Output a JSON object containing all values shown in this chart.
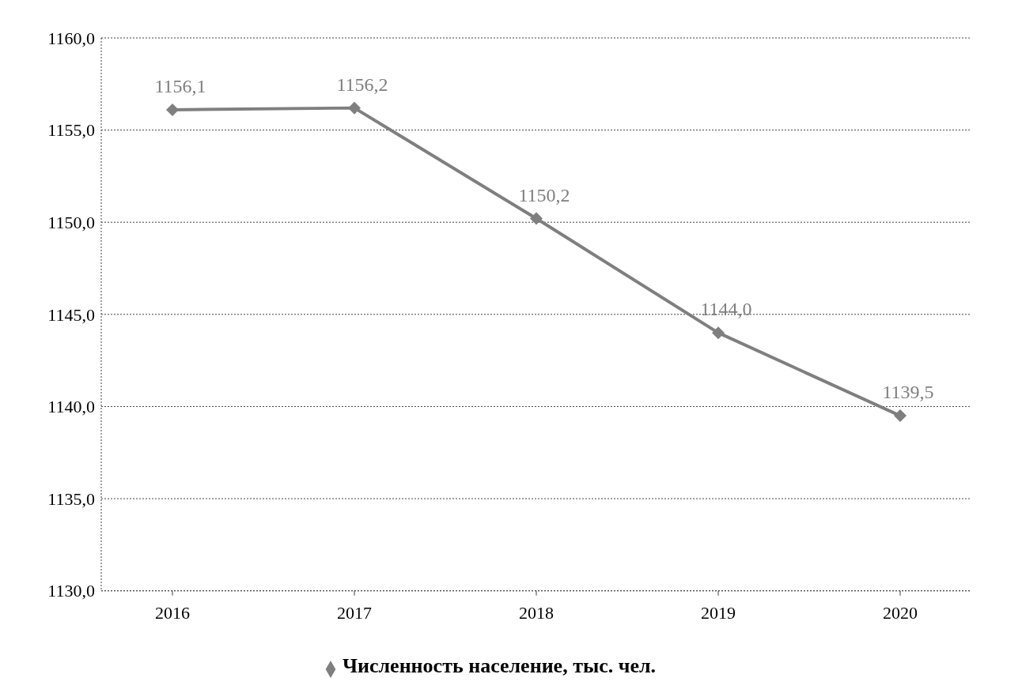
{
  "chart_data": {
    "type": "line",
    "categories": [
      "2016",
      "2017",
      "2018",
      "2019",
      "2020"
    ],
    "series": [
      {
        "name": "Численность население, тыс. чел.",
        "color": "#7f7f7f",
        "values": [
          1156.1,
          1156.2,
          1150.2,
          1144.0,
          1139.5
        ],
        "value_labels": [
          "1156,1",
          "1156,2",
          "1150,2",
          "1144,0",
          "1139,5"
        ]
      }
    ],
    "ylim": [
      1130,
      1160
    ],
    "yticks": [
      {
        "value": 1130,
        "label": "1130,0"
      },
      {
        "value": 1135,
        "label": "1135,0"
      },
      {
        "value": 1140,
        "label": "1140,0"
      },
      {
        "value": 1145,
        "label": "1145,0"
      },
      {
        "value": 1150,
        "label": "1150,0"
      },
      {
        "value": 1155,
        "label": "1155,0"
      },
      {
        "value": 1160,
        "label": "1160,0"
      }
    ],
    "grid": "y",
    "legend": "bottom",
    "marker": "diamond",
    "line_style": "solid"
  }
}
